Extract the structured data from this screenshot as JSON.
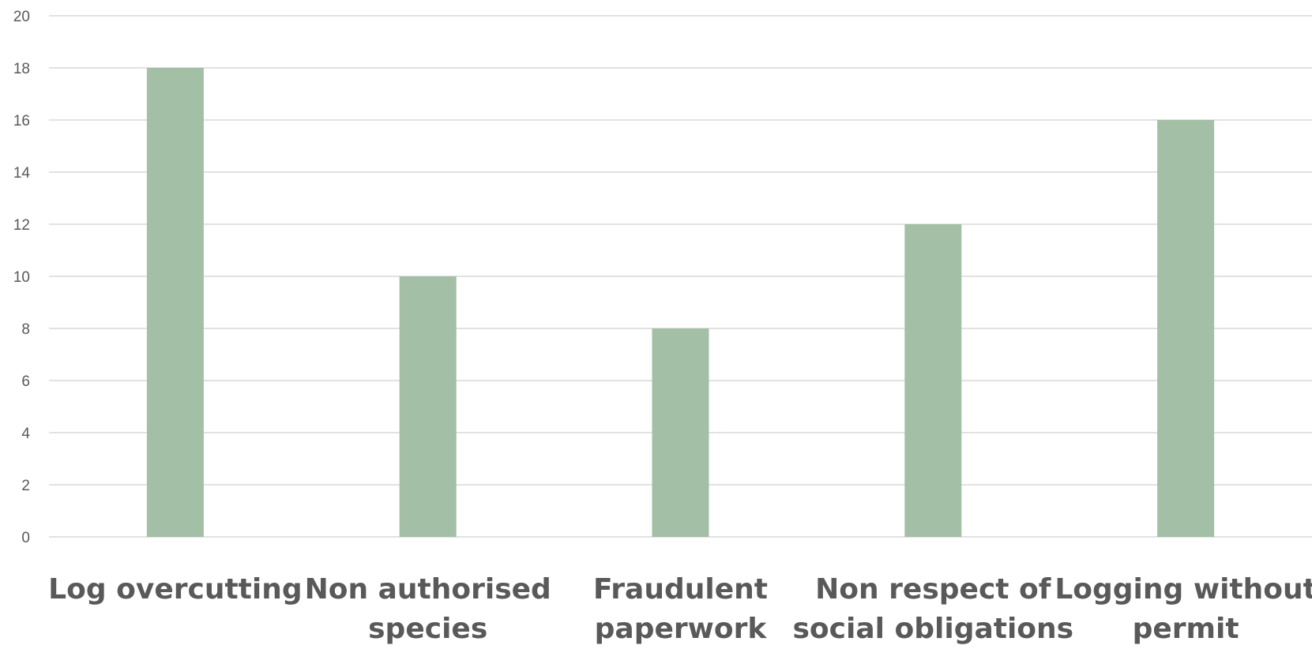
{
  "chart_data": {
    "type": "bar",
    "title": "",
    "xlabel": "",
    "ylabel": "",
    "categories": [
      [
        "Log overcutting"
      ],
      [
        "Non authorised",
        "species"
      ],
      [
        "Fraudulent",
        "paperwork"
      ],
      [
        "Non respect of",
        "social obligations"
      ],
      [
        "Logging without",
        "permit"
      ]
    ],
    "values": [
      18,
      10,
      8,
      12,
      16
    ],
    "ylim": [
      0,
      20
    ],
    "yticks": [
      0,
      2,
      4,
      6,
      8,
      10,
      12,
      14,
      16,
      18,
      20
    ],
    "grid": true,
    "legend": "none",
    "colors": {
      "bar": "#a3bfa5",
      "grid": "#d9d9d9",
      "text": "#595959"
    }
  }
}
